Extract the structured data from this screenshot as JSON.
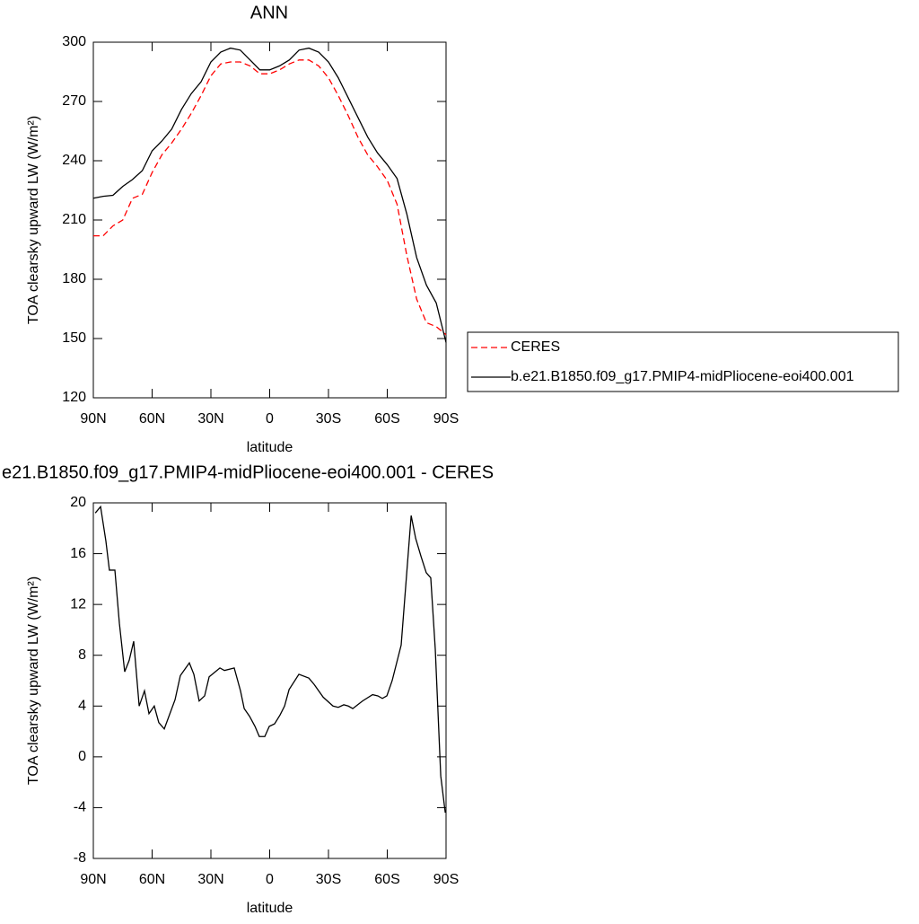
{
  "chart_data": [
    {
      "type": "line",
      "title": "ANN",
      "xlabel": "latitude",
      "ylabel": "TOA clearsky upward LW (W/m²)",
      "xlim": [
        90,
        -90
      ],
      "xticks": [
        {
          "value": 90,
          "label": "90N"
        },
        {
          "value": 60,
          "label": "60N"
        },
        {
          "value": 30,
          "label": "30N"
        },
        0,
        {
          "value": -30,
          "label": "30S"
        },
        {
          "value": -60,
          "label": "60S"
        },
        {
          "value": -90,
          "label": "90S"
        }
      ],
      "ylim": [
        120,
        300
      ],
      "yticks": [
        120,
        150,
        180,
        210,
        240,
        270,
        300
      ],
      "x": [
        90,
        85,
        80,
        75,
        70,
        65,
        60,
        55,
        50,
        45,
        40,
        35,
        30,
        25,
        20,
        15,
        10,
        5,
        0,
        -5,
        -10,
        -15,
        -20,
        -25,
        -30,
        -35,
        -40,
        -45,
        -50,
        -55,
        -60,
        -65,
        -70,
        -75,
        -80,
        -85,
        -90
      ],
      "legend": "right",
      "series": [
        {
          "name": "CERES",
          "color": "#ff0000",
          "dash": "dashed",
          "values": [
            202,
            202,
            207,
            210,
            221,
            223,
            234,
            243,
            249,
            256,
            264,
            273,
            283,
            289,
            290,
            290,
            288,
            284,
            284,
            286,
            289,
            291,
            291,
            288,
            282,
            273,
            263,
            252,
            243,
            237,
            230,
            218,
            192,
            170,
            158,
            156,
            152
          ]
        },
        {
          "name": "b.e21.B1850.f09_g17.PMIP4-midPliocene-eoi400.001",
          "color": "#000000",
          "dash": "solid",
          "values": [
            221,
            222,
            222.5,
            227,
            230.5,
            235,
            245,
            250,
            256,
            266,
            274,
            280,
            290,
            295,
            297,
            296,
            291,
            286,
            286,
            288,
            291,
            296,
            297,
            295,
            290,
            282,
            272,
            262,
            252,
            244,
            238,
            231,
            213,
            191,
            177,
            168,
            148
          ]
        }
      ]
    },
    {
      "type": "line",
      "title": "e21.B1850.f09_g17.PMIP4-midPliocene-eoi400.001 - CERES",
      "xlabel": "latitude",
      "ylabel": "TOA clearsky upward LW (W/m²)",
      "xlim": [
        90,
        -90
      ],
      "xticks": [
        {
          "value": 90,
          "label": "90N"
        },
        {
          "value": 60,
          "label": "60N"
        },
        {
          "value": 30,
          "label": "30N"
        },
        0,
        {
          "value": -30,
          "label": "30S"
        },
        {
          "value": -60,
          "label": "60S"
        },
        {
          "value": -90,
          "label": "90S"
        }
      ],
      "ylim": [
        -8,
        20
      ],
      "yticks": [
        -8,
        -4,
        0,
        4,
        8,
        12,
        16,
        20
      ],
      "x": [
        89,
        86.3,
        83.6,
        81.8,
        79,
        76.7,
        74,
        71.7,
        69.4,
        66.6,
        63.9,
        61.6,
        58.9,
        56.6,
        53.8,
        48.3,
        45.6,
        41,
        38.7,
        36,
        33.2,
        30.9,
        25.4,
        23.1,
        18.1,
        14.9,
        13,
        10.3,
        7.5,
        5.3,
        2.5,
        0.2,
        -2.5,
        -5.3,
        -7.6,
        -9.9,
        -14.9,
        -20,
        -22.7,
        -27.3,
        -32.3,
        -35,
        -37.8,
        -40.1,
        -42.4,
        -47.4,
        -52.5,
        -55.2,
        -57.5,
        -59.8,
        -62.5,
        -67.1,
        -72.2,
        -74.5,
        -77.2,
        -79.9,
        -82.2,
        -84.5,
        -87.3,
        -89.6
      ],
      "series": [
        {
          "color": "#000000",
          "dash": "solid",
          "values": [
            19.2,
            19.7,
            17,
            14.7,
            14.7,
            10.5,
            6.7,
            7.6,
            9.1,
            4,
            5.2,
            3.4,
            4,
            2.7,
            2.2,
            4.5,
            6.4,
            7.4,
            6.5,
            4.4,
            4.8,
            6.3,
            7,
            6.8,
            7,
            5.2,
            3.8,
            3.2,
            2.4,
            1.6,
            1.6,
            2.4,
            2.6,
            3.3,
            4,
            5.3,
            6.5,
            6.2,
            5.7,
            4.7,
            4,
            3.9,
            4.1,
            4,
            3.8,
            4.4,
            4.9,
            4.8,
            4.6,
            4.8,
            6,
            8.8,
            19,
            17.2,
            15.8,
            14.5,
            14.1,
            8.5,
            -1.5,
            -4.4
          ]
        }
      ]
    }
  ]
}
